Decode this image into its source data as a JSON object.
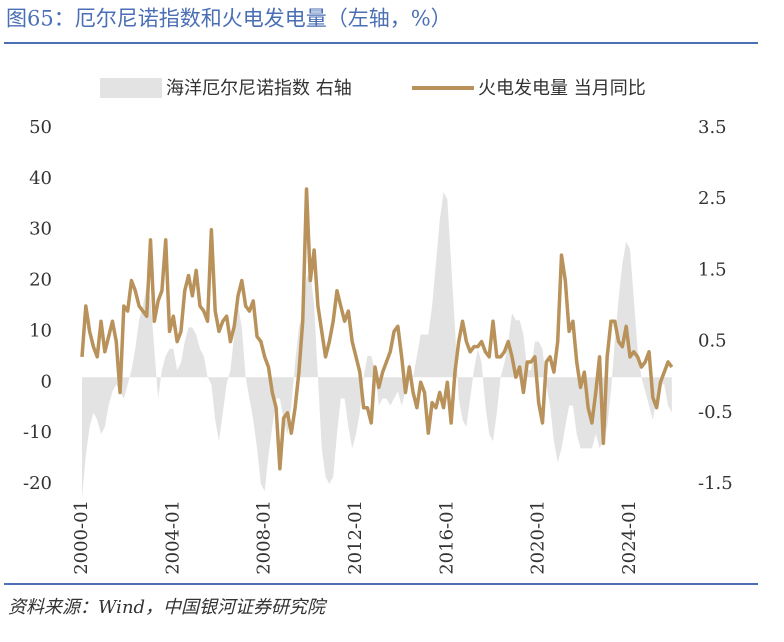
{
  "chart_data": {
    "type": "line",
    "title": "图65：厄尔尼诺指数和火电发电量（左轴，%）",
    "source": "资料来源：Wind，中国银河证券研究院",
    "categories": [
      "2000-01",
      null,
      null,
      null,
      null,
      null,
      null,
      null,
      null,
      null,
      null,
      null,
      null,
      null,
      null,
      null,
      null,
      null,
      null,
      null,
      null,
      null,
      null,
      null,
      "2004-01",
      null,
      null,
      null,
      null,
      null,
      null,
      null,
      null,
      null,
      null,
      null,
      null,
      null,
      null,
      null,
      null,
      null,
      null,
      null,
      null,
      null,
      null,
      null,
      "2008-01",
      null,
      null,
      null,
      null,
      null,
      null,
      null,
      null,
      null,
      null,
      null,
      null,
      null,
      null,
      null,
      null,
      null,
      null,
      null,
      null,
      null,
      null,
      null,
      "2012-01",
      null,
      null,
      null,
      null,
      null,
      null,
      null,
      null,
      null,
      null,
      null,
      null,
      null,
      null,
      null,
      null,
      null,
      null,
      null,
      null,
      null,
      null,
      null,
      "2016-01",
      null,
      null,
      null,
      null,
      null,
      null,
      null,
      null,
      null,
      null,
      null,
      null,
      null,
      null,
      null,
      null,
      null,
      null,
      null,
      null,
      null,
      null,
      null,
      "2020-01",
      null,
      null,
      null,
      null,
      null,
      null,
      null,
      null,
      null,
      null,
      null,
      null,
      null,
      null,
      null,
      null,
      null,
      null,
      null,
      null,
      null,
      null,
      null,
      "2024-01",
      null,
      null,
      null,
      null,
      null,
      null,
      null,
      null,
      null,
      null,
      null
    ],
    "series": [
      {
        "name": "海洋厄尔尼诺指数 右轴",
        "type": "area",
        "axis": "y2",
        "color": "#e3e3e3",
        "values": [
          -1.7,
          -1.1,
          -0.7,
          -0.5,
          -0.6,
          -0.8,
          -0.7,
          -0.4,
          -0.2,
          -0.1,
          -0.2,
          -0.3,
          -0.1,
          0.1,
          0.4,
          0.8,
          1.0,
          1.3,
          1.1,
          0.4,
          -0.3,
          0.1,
          0.3,
          0.4,
          0.4,
          0.1,
          0.2,
          0.5,
          0.7,
          0.7,
          0.6,
          0.4,
          0.3,
          0.0,
          -0.1,
          -0.6,
          -0.9,
          -0.5,
          -0.1,
          0.1,
          0.6,
          1.0,
          0.7,
          0.0,
          -0.3,
          -0.6,
          -1.0,
          -1.5,
          -1.6,
          -1.1,
          -0.7,
          -0.3,
          -0.3,
          -0.6,
          -0.8,
          -0.4,
          0.2,
          0.7,
          0.9,
          1.4,
          1.5,
          1.0,
          0.0,
          -1.0,
          -1.4,
          -1.5,
          -1.4,
          -0.8,
          -0.3,
          -0.3,
          -0.7,
          -1.0,
          -0.8,
          -0.5,
          0.0,
          0.3,
          0.3,
          0.1,
          -0.4,
          -0.3,
          -0.3,
          -0.4,
          -0.3,
          -0.2,
          -0.4,
          -0.2,
          0.2,
          0.0,
          0.3,
          0.6,
          0.6,
          0.6,
          1.0,
          1.6,
          2.2,
          2.6,
          2.5,
          1.6,
          0.7,
          -0.3,
          -0.6,
          -0.7,
          -0.3,
          0.1,
          0.4,
          0.2,
          -0.4,
          -0.8,
          -0.9,
          -0.5,
          0.0,
          0.2,
          0.5,
          0.9,
          0.8,
          0.8,
          0.6,
          0.1,
          0.1,
          0.5,
          0.5,
          0.4,
          -0.1,
          -0.4,
          -0.9,
          -1.2,
          -1.0,
          -0.7,
          -0.4,
          -0.4,
          -0.8,
          -1.0,
          -1.0,
          -1.0,
          -1.0,
          -0.8,
          -1.0,
          -0.9,
          -0.7,
          -0.2,
          0.5,
          1.1,
          1.6,
          1.9,
          1.8,
          1.1,
          0.4,
          0.0,
          -0.2,
          -0.4,
          -0.6,
          -0.3,
          -0.1,
          -0.1,
          -0.4,
          -0.5
        ]
      },
      {
        "name": "火电发电量 当月同比",
        "type": "line",
        "color": "#b8925a",
        "values": [
          5,
          15,
          10,
          7,
          5,
          12,
          6,
          9,
          12,
          8,
          -2,
          15,
          14,
          20,
          18,
          15,
          14,
          13,
          28,
          12,
          16,
          18,
          28,
          10,
          13,
          8,
          10,
          18,
          21,
          17,
          22,
          15,
          14,
          12,
          30,
          14,
          10,
          12,
          13,
          8,
          11,
          17,
          20,
          15,
          14,
          16,
          9,
          8,
          5,
          3,
          -2,
          -5,
          -17,
          -7,
          -6,
          -10,
          -5,
          2,
          12,
          38,
          20,
          26,
          15,
          10,
          5,
          8,
          12,
          18,
          15,
          12,
          14,
          8,
          5,
          2,
          -5,
          -5,
          -8,
          3,
          -1,
          2,
          4,
          6,
          10,
          11,
          5,
          -2,
          3,
          -2,
          -5,
          0,
          -2,
          -10,
          -4,
          -5,
          -2,
          -5,
          0,
          -8,
          2,
          8,
          12,
          8,
          6,
          7,
          7,
          8,
          6,
          5,
          12,
          5,
          5,
          6,
          8,
          5,
          1,
          3,
          -2,
          4,
          4,
          5,
          -4,
          -8,
          4,
          5,
          2,
          8,
          25,
          20,
          10,
          12,
          4,
          -1,
          2,
          -5,
          -8,
          -2,
          5,
          -12,
          5,
          12,
          12,
          8,
          7,
          11,
          5,
          6,
          5,
          3,
          4,
          6,
          -3,
          -5,
          0,
          2,
          4,
          3
        ]
      }
    ],
    "ylim": [
      -20,
      50
    ],
    "yticks": [
      -20,
      -10,
      0,
      10,
      20,
      30,
      40,
      50
    ],
    "y2lim": [
      -1.5,
      3.5
    ],
    "y2ticks": [
      -1.5,
      -0.5,
      0.5,
      1.5,
      2.5,
      3.5
    ]
  }
}
